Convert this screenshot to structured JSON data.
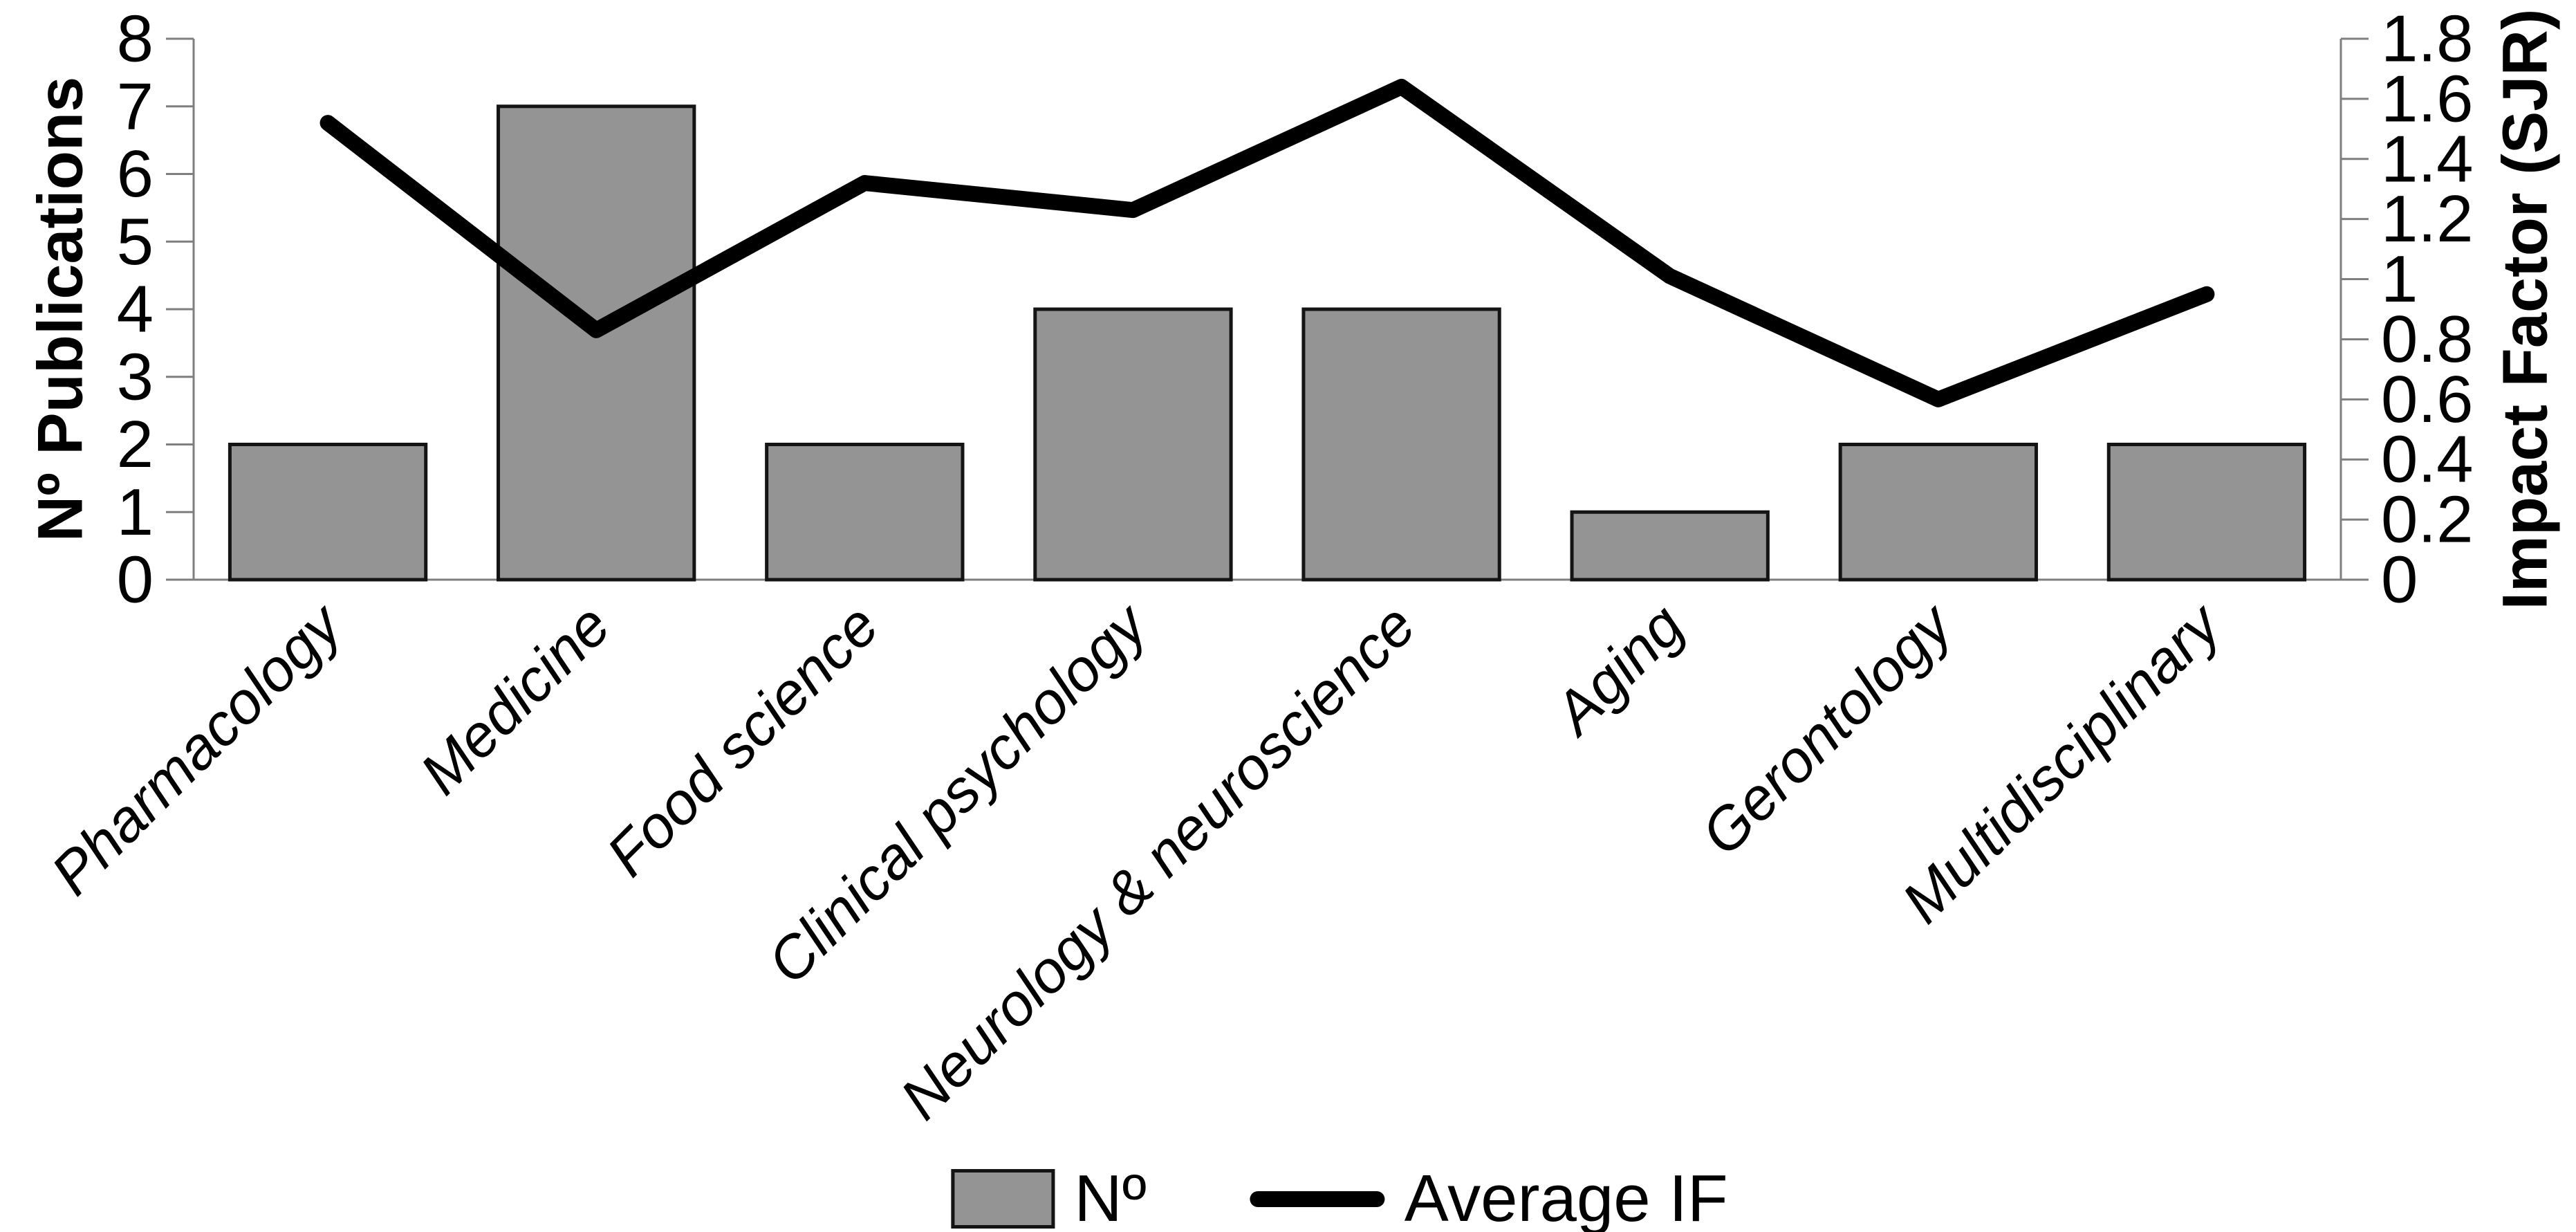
{
  "chart_data": {
    "type": "combo",
    "subtypes": [
      "bar",
      "line"
    ],
    "categories": [
      "Pharmacology",
      "Medicine",
      "Food science",
      "Clinical psychology",
      "Neurology & neuroscience",
      "Aging",
      "Gerontology",
      "Multidisciplinary"
    ],
    "series": [
      {
        "name": "Nº",
        "type": "bar",
        "axis": "left",
        "values": [
          2,
          7,
          2,
          4,
          4,
          1,
          2,
          2
        ]
      },
      {
        "name": "Average IF",
        "type": "line",
        "axis": "right",
        "values": [
          1.52,
          0.83,
          1.32,
          1.23,
          1.64,
          1.01,
          0.6,
          0.95
        ]
      }
    ],
    "left_axis": {
      "label": "Nº Publications",
      "min": 0,
      "max": 8,
      "tick_labels": [
        "0",
        "1",
        "2",
        "3",
        "4",
        "5",
        "6",
        "7",
        "8"
      ]
    },
    "right_axis": {
      "label": "Impact Factor (SJR)",
      "min": 0,
      "max": 1.8,
      "tick_labels": [
        "0",
        "0.2",
        "0.4",
        "0.6",
        "0.8",
        "1",
        "1.2",
        "1.4",
        "1.6",
        "1.8"
      ]
    },
    "legend": {
      "position": "bottom",
      "entries": [
        "Nº",
        "Average IF"
      ]
    },
    "grid": false,
    "colors": {
      "bar_fill": "#949494",
      "bar_border": "#141414",
      "line": "#000000",
      "axis": "#7f7f7f",
      "text": "#000000",
      "background": "#ffffff"
    }
  }
}
